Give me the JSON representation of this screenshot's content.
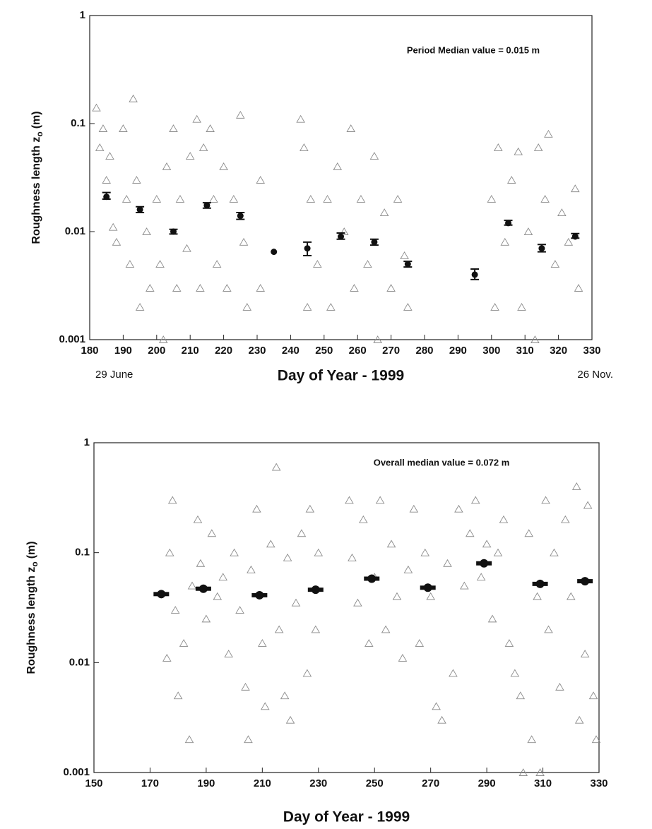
{
  "chart_data": [
    {
      "type": "scatter",
      "annotation": "Period Median value = 0.015 m",
      "x_label": "Day of Year - 1999",
      "x_sublabels": [
        "29 June",
        "26 Nov."
      ],
      "y_label": {
        "main": "Roughness length z",
        "sub": "o",
        "unit": "(m)"
      },
      "log_y": true,
      "xlim": [
        180,
        330
      ],
      "ylim": [
        0.001,
        1
      ],
      "xticks": [
        180,
        190,
        200,
        210,
        220,
        230,
        240,
        250,
        260,
        270,
        280,
        290,
        300,
        310,
        320,
        330
      ],
      "yticks": [
        0.001,
        0.01,
        0.1,
        1
      ],
      "points": {
        "color": "#8a8a8a",
        "x": [
          182,
          183,
          184,
          185,
          186,
          187,
          188,
          190,
          191,
          192,
          193,
          194,
          195,
          197,
          198,
          200,
          201,
          202,
          203,
          205,
          206,
          207,
          209,
          210,
          212,
          213,
          214,
          216,
          217,
          218,
          220,
          221,
          223,
          225,
          226,
          227,
          231,
          231,
          243,
          244,
          245,
          246,
          248,
          251,
          252,
          254,
          256,
          258,
          259,
          261,
          263,
          265,
          266,
          268,
          270,
          272,
          274,
          275,
          300,
          301,
          302,
          304,
          306,
          308,
          309,
          311,
          313,
          314,
          316,
          317,
          319,
          321,
          323,
          325,
          326
        ],
        "y": [
          0.14,
          0.06,
          0.09,
          0.03,
          0.05,
          0.011,
          0.008,
          0.09,
          0.02,
          0.005,
          0.17,
          0.03,
          0.002,
          0.01,
          0.003,
          0.02,
          0.005,
          0.001,
          0.04,
          0.09,
          0.003,
          0.02,
          0.007,
          0.05,
          0.11,
          0.003,
          0.06,
          0.09,
          0.02,
          0.005,
          0.04,
          0.003,
          0.02,
          0.12,
          0.008,
          0.002,
          0.03,
          0.003,
          0.11,
          0.06,
          0.002,
          0.02,
          0.005,
          0.02,
          0.002,
          0.04,
          0.01,
          0.09,
          0.003,
          0.02,
          0.005,
          0.05,
          0.001,
          0.015,
          0.003,
          0.02,
          0.006,
          0.002,
          0.02,
          0.002,
          0.06,
          0.008,
          0.03,
          0.055,
          0.002,
          0.01,
          0.001,
          0.06,
          0.02,
          0.08,
          0.005,
          0.015,
          0.008,
          0.025,
          0.003
        ]
      },
      "medians": {
        "color": "#111",
        "x": [
          185,
          195,
          205,
          215,
          225,
          235,
          245,
          255,
          265,
          275,
          295,
          305,
          315,
          325
        ],
        "y": [
          0.021,
          0.016,
          0.01,
          0.0175,
          0.014,
          0.0065,
          0.007,
          0.009,
          0.008,
          0.005,
          0.004,
          0.012,
          0.007,
          0.009
        ],
        "low": [
          0.02,
          0.015,
          0.0095,
          0.0165,
          0.013,
          null,
          0.006,
          0.0085,
          0.0075,
          0.0047,
          0.0036,
          0.0115,
          0.0065,
          0.0087
        ],
        "high": [
          0.023,
          0.017,
          0.0105,
          0.0185,
          0.015,
          null,
          0.008,
          0.0097,
          0.0085,
          0.0053,
          0.0045,
          0.0127,
          0.0076,
          0.0096
        ]
      }
    },
    {
      "type": "scatter",
      "annotation": "Overall median value = 0.072 m",
      "x_label": "Day of Year - 1999",
      "y_label": {
        "main": "Roughness length z",
        "sub": "o",
        "unit": "(m)"
      },
      "log_y": true,
      "xlim": [
        150,
        330
      ],
      "ylim": [
        0.001,
        1
      ],
      "xticks": [
        150,
        170,
        190,
        210,
        230,
        250,
        270,
        290,
        310,
        330
      ],
      "yticks": [
        0.001,
        0.01,
        0.1,
        1
      ],
      "points": {
        "color": "#8a8a8a",
        "x": [
          176,
          177,
          178,
          179,
          180,
          182,
          184,
          185,
          187,
          188,
          190,
          192,
          194,
          196,
          198,
          200,
          202,
          204,
          205,
          206,
          208,
          210,
          211,
          213,
          215,
          216,
          218,
          219,
          220,
          222,
          224,
          226,
          227,
          229,
          230,
          241,
          242,
          244,
          246,
          248,
          250,
          252,
          254,
          256,
          258,
          260,
          262,
          264,
          266,
          268,
          270,
          272,
          274,
          276,
          278,
          280,
          282,
          284,
          286,
          288,
          290,
          292,
          294,
          296,
          298,
          300,
          302,
          303,
          305,
          306,
          308,
          309,
          311,
          312,
          314,
          316,
          318,
          320,
          322,
          323,
          325,
          326,
          328,
          329
        ],
        "y": [
          0.011,
          0.1,
          0.3,
          0.03,
          0.005,
          0.015,
          0.002,
          0.05,
          0.2,
          0.08,
          0.025,
          0.15,
          0.04,
          0.06,
          0.012,
          0.1,
          0.03,
          0.006,
          0.002,
          0.07,
          0.25,
          0.015,
          0.004,
          0.12,
          0.6,
          0.02,
          0.005,
          0.09,
          0.003,
          0.035,
          0.15,
          0.008,
          0.25,
          0.02,
          0.1,
          0.3,
          0.09,
          0.035,
          0.2,
          0.015,
          0.06,
          0.3,
          0.02,
          0.12,
          0.04,
          0.011,
          0.07,
          0.25,
          0.015,
          0.1,
          0.04,
          0.004,
          0.003,
          0.08,
          0.008,
          0.25,
          0.05,
          0.15,
          0.3,
          0.06,
          0.12,
          0.025,
          0.1,
          0.2,
          0.015,
          0.008,
          0.005,
          0.001,
          0.15,
          0.002,
          0.04,
          0.001,
          0.3,
          0.02,
          0.1,
          0.006,
          0.2,
          0.04,
          0.4,
          0.003,
          0.012,
          0.27,
          0.005,
          0.002
        ]
      },
      "medians": {
        "color": "#111",
        "x": [
          174,
          189,
          209,
          229,
          249,
          269,
          289,
          309,
          325
        ],
        "y": [
          0.042,
          0.047,
          0.041,
          0.046,
          0.058,
          0.048,
          0.08,
          0.052,
          0.055
        ]
      }
    }
  ]
}
